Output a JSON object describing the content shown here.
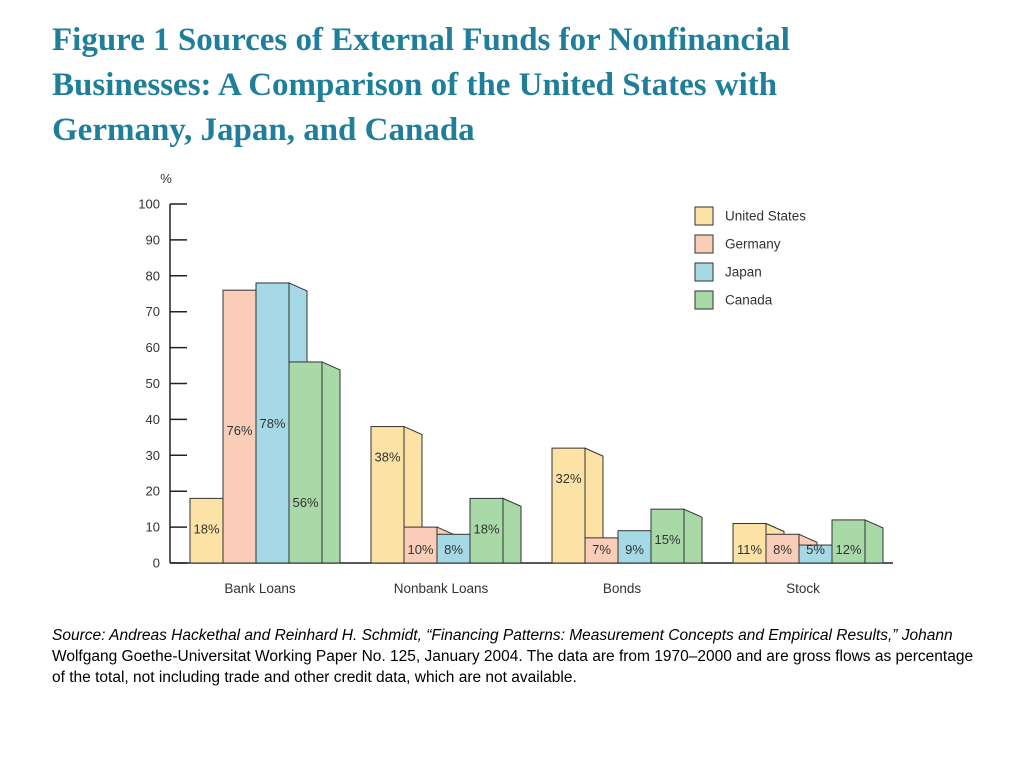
{
  "title": {
    "lines": [
      "Figure 1 Sources of External Funds for Nonfinancial",
      "Businesses: A Comparison of the United States with",
      "Germany, Japan, and Canada"
    ]
  },
  "chart_data": {
    "type": "bar",
    "ylabel": "%",
    "ylim": [
      0,
      100
    ],
    "yticks": [
      0,
      10,
      20,
      30,
      40,
      50,
      60,
      70,
      80,
      90,
      100
    ],
    "categories": [
      "Bank Loans",
      "Nonbank Loans",
      "Bonds",
      "Stock"
    ],
    "series": [
      {
        "name": "United States",
        "color": "#fde2a6",
        "values": [
          18,
          38,
          32,
          11
        ],
        "labels": [
          "18%",
          "38%",
          "32%",
          "11%"
        ]
      },
      {
        "name": "Germany",
        "color": "#f9cdb8",
        "values": [
          76,
          10,
          7,
          8
        ],
        "labels": [
          "76%",
          "10%",
          "7%",
          "8%"
        ]
      },
      {
        "name": "Japan",
        "color": "#a4d9e5",
        "values": [
          78,
          8,
          9,
          5
        ],
        "labels": [
          "78%",
          "8%",
          "9%",
          "5%"
        ]
      },
      {
        "name": "Canada",
        "color": "#a8d9a7",
        "values": [
          56,
          18,
          15,
          12
        ],
        "labels": [
          "56%",
          "18%",
          "15%",
          "12%"
        ]
      }
    ],
    "legend_position": "top-right",
    "grid": false
  },
  "source": {
    "italic_part": "Source: Andreas Hackethal and Reinhard H. Schmidt, “Financing Patterns: Measurement Concepts and Empirical Results,” Johann",
    "regular_part": " Wolfgang Goethe-Universitat Working Paper No. 125, January 2004. The data are from 1970–2000 and are gross flows as percentage of the total, not including trade and other credit data, which are not available."
  }
}
